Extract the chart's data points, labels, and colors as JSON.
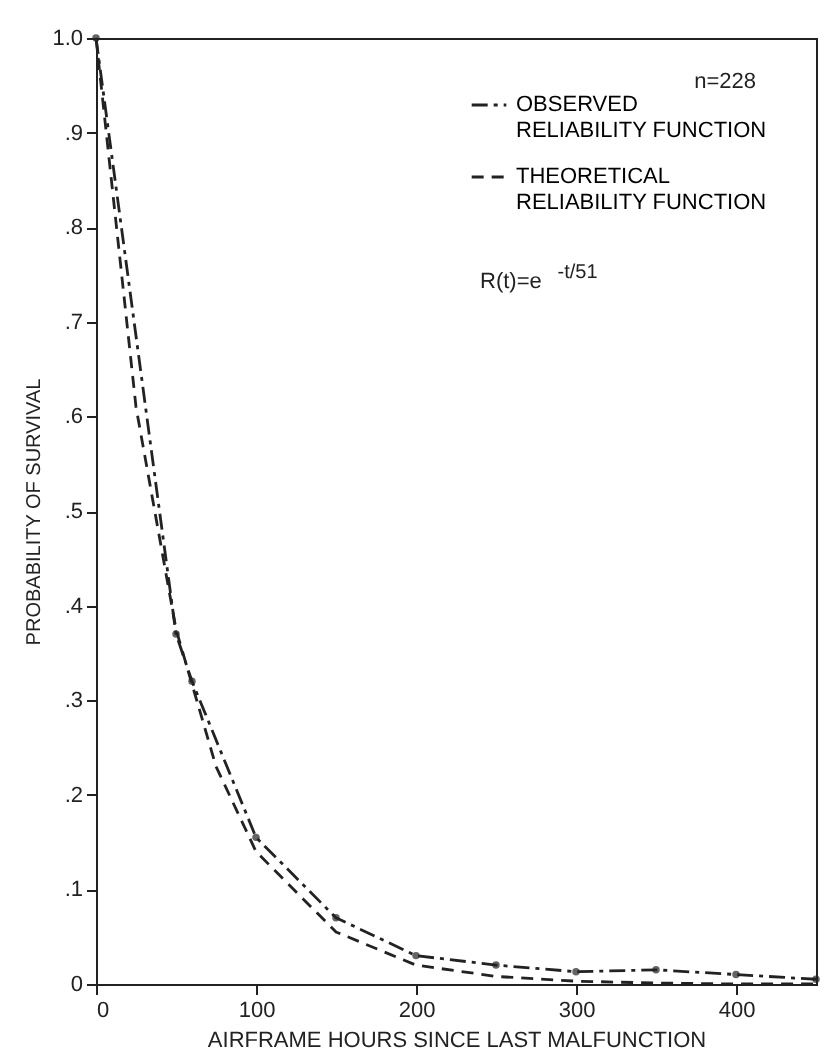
{
  "chart_data": {
    "type": "line",
    "xlabel": "AIRFRAME HOURS SINCE LAST MALFUNCTION",
    "ylabel": "PROBABILITY OF SURVIVAL",
    "annotations": [
      "n=228",
      "R(t)=e$^{-t/51}$"
    ],
    "xlim": [
      0,
      450
    ],
    "xticks": [
      0,
      100,
      200,
      300,
      400
    ],
    "ylim": [
      0,
      1.0
    ],
    "yticks": [
      {
        "value": 0,
        "label": "0"
      },
      {
        "value": 0.1,
        "label": ".1"
      },
      {
        "value": 0.2,
        "label": ".2"
      },
      {
        "value": 0.3,
        "label": ".3"
      },
      {
        "value": 0.4,
        "label": ".4"
      },
      {
        "value": 0.5,
        "label": ".5"
      },
      {
        "value": 0.6,
        "label": ".6"
      },
      {
        "value": 0.7,
        "label": ".7"
      },
      {
        "value": 0.8,
        "label": ".8"
      },
      {
        "value": 0.9,
        "label": ".9"
      },
      {
        "value": 1.0,
        "label": "1.0"
      }
    ],
    "grid": false,
    "legend": "top right",
    "series": [
      {
        "name": "OBSERVED RELIABILITY FUNCTION",
        "color": "#222222",
        "line_style": "dashdot",
        "marker": "circle",
        "x": [
          0,
          50,
          60,
          100,
          150,
          200,
          250,
          300,
          350,
          400,
          450
        ],
        "values": [
          1.0,
          0.37,
          0.32,
          0.155,
          0.07,
          0.03,
          0.02,
          0.013,
          0.015,
          0.01,
          0.005
        ]
      },
      {
        "name": "THEORETICAL RELIABILITY FUNCTION",
        "color": "#222222",
        "line_style": "dashed",
        "marker": "none",
        "x": [
          0,
          25,
          50,
          75,
          100,
          150,
          200,
          250,
          300,
          350,
          400,
          450
        ],
        "values": [
          1.0,
          0.61,
          0.375,
          0.23,
          0.14,
          0.055,
          0.02,
          0.008,
          0.003,
          0.001,
          0.0,
          0.0
        ]
      }
    ]
  }
}
